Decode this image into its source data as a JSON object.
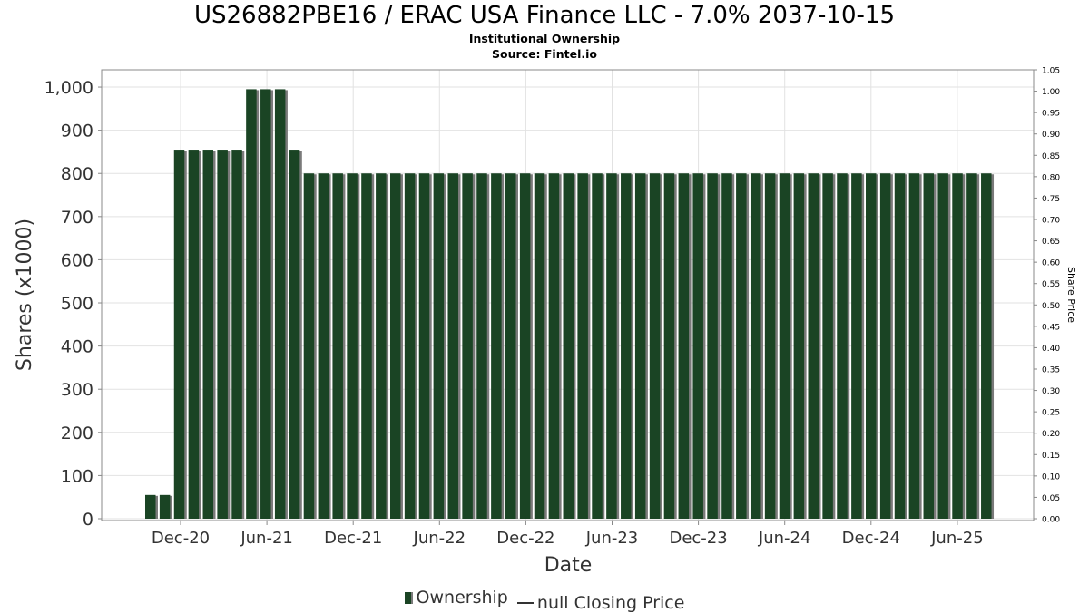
{
  "chart_data": {
    "type": "bar",
    "title": "US26882PBE16 / ERAC USA Finance LLC - 7.0% 2037-10-15",
    "subtitle": "Institutional Ownership",
    "source": "Source: Fintel.io",
    "xlabel": "Date",
    "ylabel": "Shares (x1000)",
    "ylabel_right": "Share Price",
    "ylim": [
      0,
      1040
    ],
    "ylim_right": [
      0,
      1.05
    ],
    "yticks": [
      "0",
      "100",
      "200",
      "300",
      "400",
      "500",
      "600",
      "700",
      "800",
      "900",
      "1,000"
    ],
    "yticks_right": [
      "0.00",
      "0.05",
      "0.10",
      "0.15",
      "0.20",
      "0.25",
      "0.30",
      "0.35",
      "0.40",
      "0.45",
      "0.50",
      "0.55",
      "0.60",
      "0.65",
      "0.70",
      "0.75",
      "0.80",
      "0.85",
      "0.90",
      "0.95",
      "1.00",
      "1.05"
    ],
    "xticks": [
      "Dec-20",
      "Jun-21",
      "Dec-21",
      "Jun-22",
      "Dec-22",
      "Jun-23",
      "Dec-23",
      "Jun-24",
      "Dec-24",
      "Jun-25"
    ],
    "grid": true,
    "legend_position": "bottom",
    "series": [
      {
        "name": "Ownership",
        "color": "#1a4424",
        "values": [
          55,
          55,
          855,
          855,
          855,
          855,
          855,
          995,
          995,
          995,
          855,
          800,
          800,
          800,
          800,
          800,
          800,
          800,
          800,
          800,
          800,
          800,
          800,
          800,
          800,
          800,
          800,
          800,
          800,
          800,
          800,
          800,
          800,
          800,
          800,
          800,
          800,
          800,
          800,
          800,
          800,
          800,
          800,
          800,
          800,
          800,
          800,
          800,
          800,
          800,
          800,
          800,
          800,
          800,
          800,
          800,
          800,
          800,
          800
        ]
      },
      {
        "name": "null Closing Price",
        "color": "#333333",
        "values": []
      }
    ]
  }
}
